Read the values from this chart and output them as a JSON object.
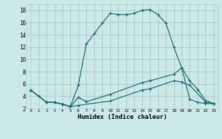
{
  "xlabel": "Humidex (Indice chaleur)",
  "bg_color": "#cce8e8",
  "grid_color": "#aacece",
  "line_color": "#1a6b6b",
  "xlim": [
    -0.5,
    23.5
  ],
  "ylim": [
    2,
    19
  ],
  "xticks": [
    0,
    1,
    2,
    3,
    4,
    5,
    6,
    7,
    8,
    9,
    10,
    11,
    12,
    13,
    14,
    15,
    16,
    17,
    18,
    19,
    20,
    21,
    22,
    23
  ],
  "yticks": [
    2,
    4,
    6,
    8,
    10,
    12,
    14,
    16,
    18
  ],
  "line1_x": [
    0,
    1,
    2,
    3,
    4,
    5,
    6,
    7,
    8,
    9,
    10,
    11,
    12,
    13,
    14,
    15,
    16,
    17,
    18,
    19,
    20,
    21,
    22,
    23
  ],
  "line1_y": [
    5,
    4,
    3,
    3,
    2.7,
    2.3,
    5.8,
    12.5,
    14.2,
    15.9,
    17.5,
    17.3,
    17.3,
    17.5,
    18.0,
    18.1,
    17.3,
    15.9,
    12,
    8.6,
    3.5,
    3,
    2.8,
    2.8
  ],
  "line2_x": [
    0,
    2,
    3,
    4,
    5,
    6,
    7,
    10,
    14,
    15,
    18,
    19,
    20,
    21,
    22,
    23
  ],
  "line2_y": [
    5,
    3,
    3,
    2.7,
    2.3,
    3.8,
    3.1,
    4.3,
    6.2,
    6.5,
    7.6,
    8.6,
    6.5,
    5.1,
    3.3,
    2.8
  ],
  "line3_x": [
    0,
    2,
    3,
    4,
    5,
    6,
    10,
    14,
    15,
    18,
    19,
    20,
    22,
    23
  ],
  "line3_y": [
    5,
    3,
    3,
    2.7,
    2.3,
    2.5,
    3.2,
    5.0,
    5.2,
    6.5,
    6.3,
    5.8,
    3.0,
    2.8
  ]
}
